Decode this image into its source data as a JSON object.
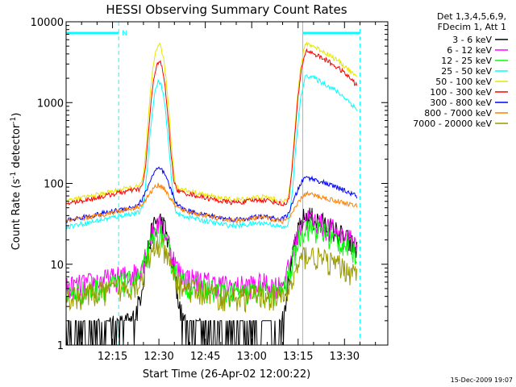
{
  "chart_data": {
    "type": "line",
    "title": "HESSI Observing Summary Count Rates",
    "xlabel": "Start Time (26-Apr-02 12:00:22)",
    "ylabel_main": "Count Rate (s",
    "ylabel_sup1": "-1",
    "ylabel_mid": " detector",
    "ylabel_sup2": "-1",
    "ylabel_end": ")",
    "yscale": "log",
    "ylim": [
      1,
      10000
    ],
    "xlim_minutes": [
      0,
      104
    ],
    "x_ticks": [
      {
        "label": "12:15",
        "min": 15
      },
      {
        "label": "12:30",
        "min": 30
      },
      {
        "label": "12:45",
        "min": 45
      },
      {
        "label": "13:00",
        "min": 60
      },
      {
        "label": "13:15",
        "min": 75
      },
      {
        "label": "13:30",
        "min": 90
      }
    ],
    "y_ticks": [
      {
        "label": "1",
        "v": 1
      },
      {
        "label": "10",
        "v": 10
      },
      {
        "label": "100",
        "v": 100
      },
      {
        "label": "1000",
        "v": 1000
      },
      {
        "label": "10000",
        "v": 10000
      }
    ],
    "legend_header": [
      "Det 1,3,4,5,6,9,",
      "FDecim 1, Att 1"
    ],
    "annotation_n": "N",
    "footer_date": "15-Dec-2009 19:07",
    "series": [
      {
        "name": "3 - 6 keV",
        "color": "#000000",
        "base": 1.4,
        "peak1": 35,
        "peak2": 40
      },
      {
        "name": "6 - 12 keV",
        "color": "#ff00ff",
        "base": 5.5,
        "peak1": 28,
        "peak2": 38
      },
      {
        "name": "12 - 25 keV",
        "color": "#00ff00",
        "base": 4.5,
        "peak1": 22,
        "peak2": 30
      },
      {
        "name": "25 - 50 keV",
        "color": "#00ffff",
        "base": 31,
        "peak1": 1800,
        "peak2": 2200
      },
      {
        "name": "50 - 100 keV",
        "color": "#e6e600",
        "base": 65,
        "peak1": 5200,
        "peak2": 5400
      },
      {
        "name": "100 - 300 keV",
        "color": "#ff0000",
        "base": 60,
        "peak1": 3200,
        "peak2": 4400
      },
      {
        "name": "300 - 800 keV",
        "color": "#0000ff",
        "base": 37,
        "peak1": 135,
        "peak2": 125
      },
      {
        "name": "800 - 7000 keV",
        "color": "#ff8000",
        "base": 36,
        "peak1": 80,
        "peak2": 80
      },
      {
        "name": "7000 - 20000 keV",
        "color": "#999900",
        "base": 4.0,
        "peak1": 15,
        "peak2": 14
      }
    ]
  }
}
